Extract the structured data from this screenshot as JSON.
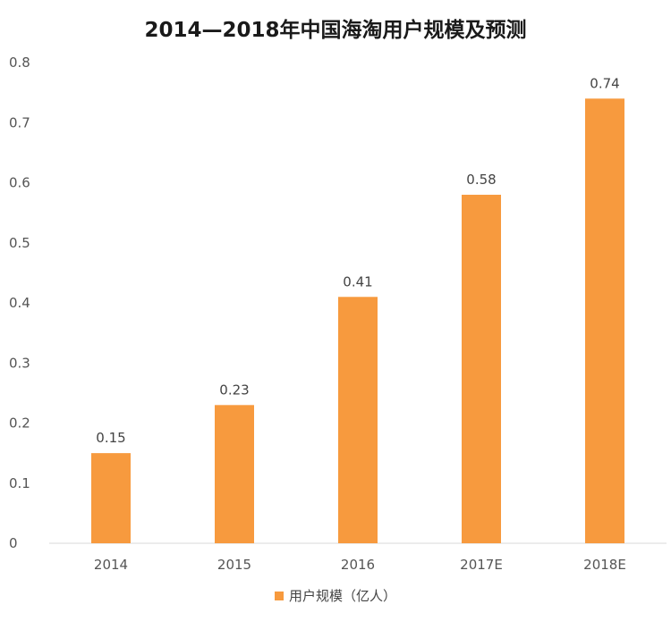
{
  "chart_data": {
    "type": "bar",
    "title": "2014—2018年中国海淘用户规模及预测",
    "categories": [
      "2014",
      "2015",
      "2016",
      "2017E",
      "2018E"
    ],
    "series": [
      {
        "name": "用户规模（亿人）",
        "values": [
          0.15,
          0.23,
          0.41,
          0.58,
          0.74
        ]
      }
    ],
    "data_labels": [
      "0.15",
      "0.23",
      "0.41",
      "0.58",
      "0.74"
    ],
    "xlabel": "",
    "ylabel": "",
    "ylim": [
      0,
      0.8
    ],
    "yticks": [
      "0",
      "0.1",
      "0.2",
      "0.3",
      "0.4",
      "0.5",
      "0.6",
      "0.7",
      "0.8"
    ],
    "grid": false,
    "legend_position": "bottom",
    "bar_color": "#F79A3E"
  }
}
